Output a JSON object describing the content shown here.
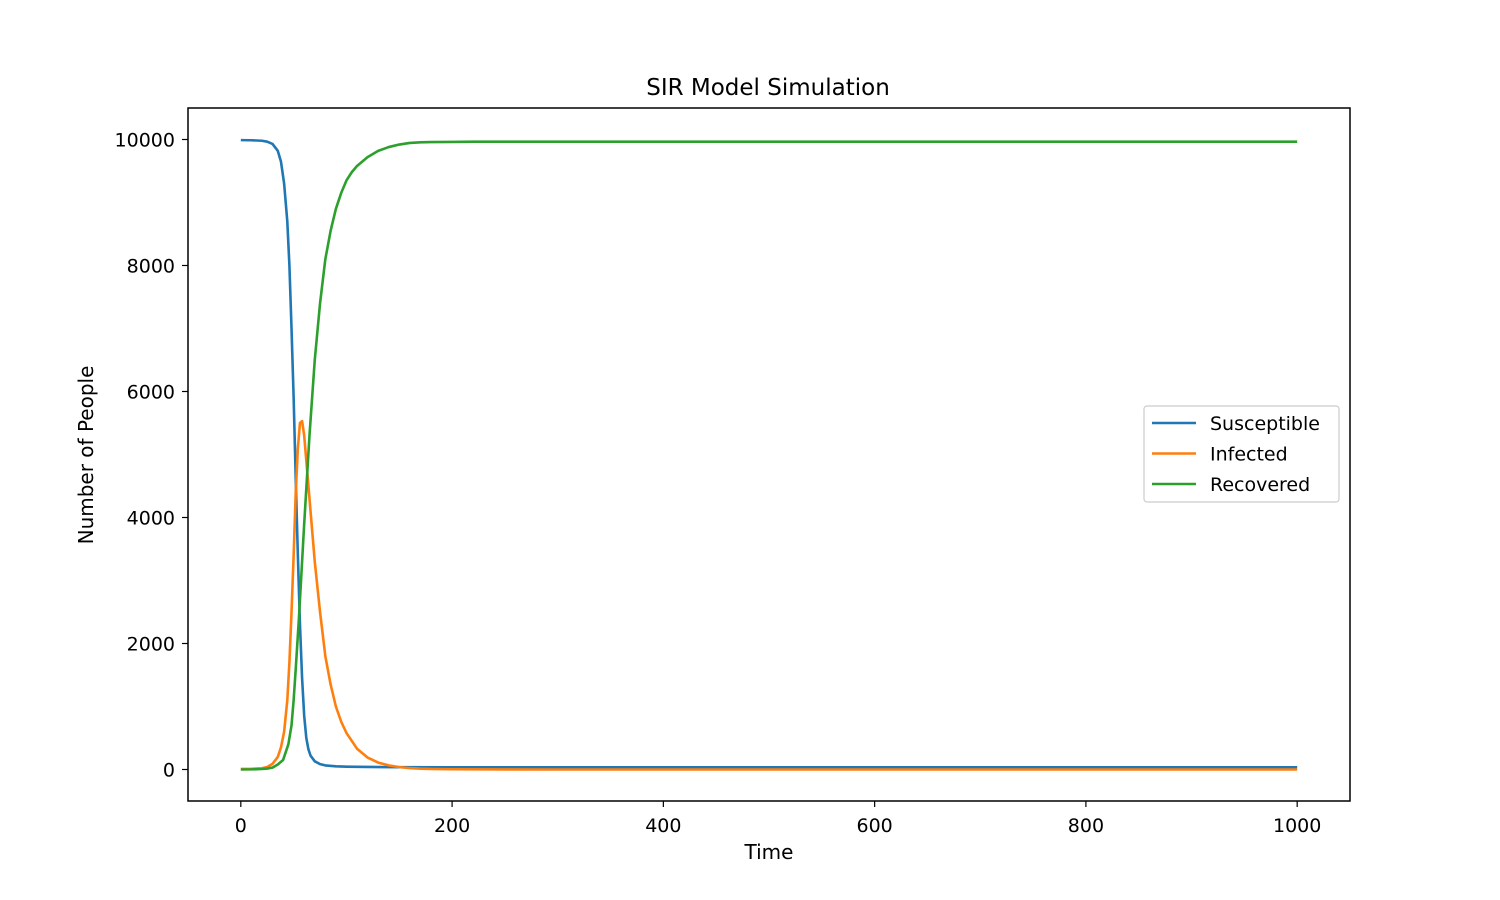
{
  "chart_data": {
    "type": "line",
    "title": "SIR Model Simulation",
    "xlabel": "Time",
    "ylabel": "Number of People",
    "xlim": [
      -50,
      1050
    ],
    "ylim": [
      -500,
      10500
    ],
    "xticks": [
      0,
      200,
      400,
      600,
      800,
      1000
    ],
    "yticks": [
      0,
      2000,
      4000,
      6000,
      8000,
      10000
    ],
    "grid": false,
    "legend_position": "center-right",
    "series": [
      {
        "name": "Susceptible",
        "color": "#1f77b4",
        "x": [
          0,
          10,
          20,
          25,
          30,
          35,
          38,
          41,
          44,
          46,
          48,
          50,
          52,
          54,
          56,
          58,
          60,
          62,
          64,
          66,
          70,
          75,
          80,
          90,
          100,
          120,
          150,
          200,
          300,
          500,
          1000
        ],
        "y": [
          9990,
          9988,
          9980,
          9965,
          9930,
          9820,
          9650,
          9300,
          8700,
          8000,
          7000,
          5900,
          4600,
          3400,
          2300,
          1450,
          850,
          500,
          320,
          220,
          130,
          85,
          65,
          50,
          45,
          40,
          37,
          35,
          35,
          35,
          35
        ]
      },
      {
        "name": "Infected",
        "color": "#ff7f0e",
        "x": [
          0,
          10,
          20,
          25,
          30,
          35,
          38,
          41,
          44,
          46,
          48,
          50,
          52,
          54,
          56,
          58,
          60,
          62,
          64,
          66,
          70,
          75,
          80,
          85,
          90,
          95,
          100,
          110,
          120,
          130,
          140,
          150,
          160,
          170,
          180,
          200,
          250,
          300,
          1000
        ],
        "y": [
          10,
          11,
          20,
          40,
          90,
          200,
          350,
          600,
          1100,
          1700,
          2500,
          3400,
          4400,
          5100,
          5500,
          5530,
          5300,
          4900,
          4500,
          4100,
          3300,
          2500,
          1800,
          1350,
          1000,
          760,
          580,
          330,
          190,
          110,
          65,
          38,
          22,
          13,
          8,
          4,
          1,
          0,
          0
        ]
      },
      {
        "name": "Recovered",
        "color": "#2ca02c",
        "x": [
          0,
          10,
          20,
          25,
          30,
          35,
          40,
          45,
          48,
          50,
          52,
          55,
          58,
          60,
          65,
          70,
          75,
          80,
          85,
          90,
          95,
          100,
          105,
          110,
          120,
          130,
          140,
          150,
          160,
          170,
          180,
          200,
          220,
          300,
          500,
          1000
        ],
        "y": [
          0,
          2,
          8,
          15,
          30,
          80,
          150,
          400,
          700,
          1100,
          1600,
          2400,
          3300,
          3900,
          5300,
          6500,
          7400,
          8100,
          8550,
          8900,
          9150,
          9350,
          9480,
          9580,
          9720,
          9820,
          9880,
          9920,
          9945,
          9955,
          9960,
          9962,
          9965,
          9965,
          9965,
          9965
        ]
      }
    ]
  }
}
